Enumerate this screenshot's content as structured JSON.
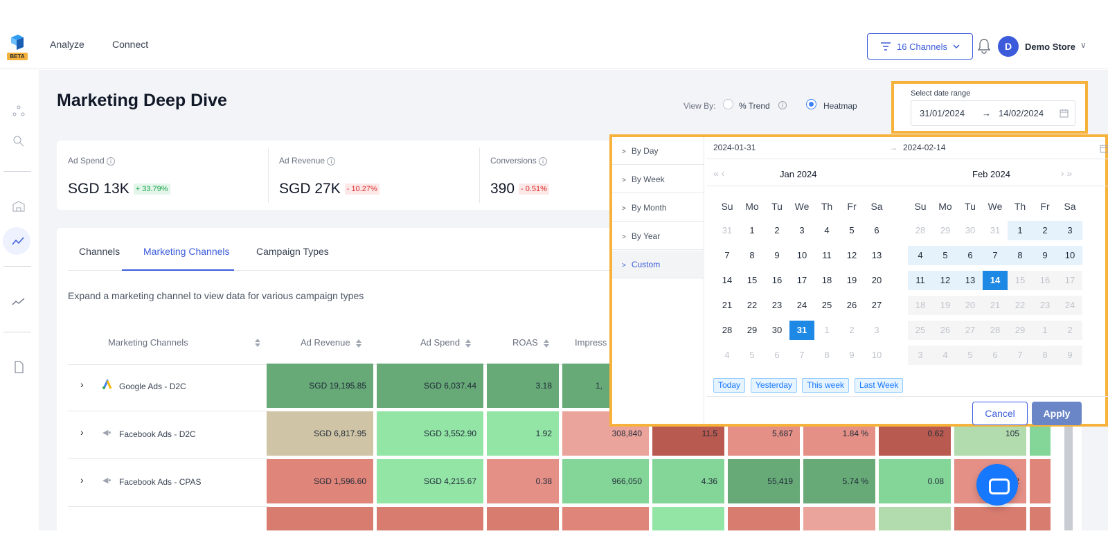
{
  "header": {
    "logo_badge": "BETA",
    "nav": [
      "Analyze",
      "Connect"
    ],
    "channels_button": "16 Channels",
    "avatar_initial": "D",
    "store_name": "Demo Store"
  },
  "page": {
    "title": "Marketing Deep Dive",
    "view_by_label": "View By:",
    "view_options": [
      "% Trend",
      "Heatmap"
    ],
    "view_selected": "Heatmap",
    "date_range_label": "Select date range",
    "date_start": "31/01/2024",
    "date_arrow": "→",
    "date_end": "14/02/2024"
  },
  "kpis": [
    {
      "label": "Ad Spend",
      "value": "SGD 13K",
      "change": "+ 33.79%",
      "trend": "up"
    },
    {
      "label": "Ad Revenue",
      "value": "SGD 27K",
      "change": "- 10.27%",
      "trend": "down"
    },
    {
      "label": "Conversions",
      "value": "390",
      "change": "- 0.51%",
      "trend": "down"
    }
  ],
  "tabs": [
    "Channels",
    "Marketing Channels",
    "Campaign Types"
  ],
  "active_tab": "Marketing Channels",
  "hint": "Expand a marketing channel to view data for various campaign types",
  "table": {
    "headers": [
      "Marketing Channels",
      "Ad Revenue",
      "Ad Spend",
      "ROAS",
      "Impress"
    ],
    "rows": [
      {
        "name": "Google Ads - D2C",
        "cells": [
          "SGD 19,195.85",
          "SGD 6,037.44",
          "3.18",
          "1,"
        ]
      },
      {
        "name": "Facebook Ads - D2C",
        "cells": [
          "SGD 6,817.95",
          "SGD 3,552.90",
          "1.92",
          "308,840",
          "11.5",
          "5,687",
          "1.84 %",
          "0.62",
          "105"
        ]
      },
      {
        "name": "Facebook Ads - CPAS",
        "cells": [
          "SGD 1,596.60",
          "SGD 4,215.67",
          "0.38",
          "966,050",
          "4.36",
          "55,419",
          "5.74 %",
          "0.08",
          "2"
        ]
      }
    ]
  },
  "picker": {
    "options": [
      "By Day",
      "By Week",
      "By Month",
      "By Year",
      "Custom"
    ],
    "active_option": "Custom",
    "input_start": "2024-01-31",
    "input_arrow": "→",
    "input_end": "2024-02-14",
    "nav_prev": "« ‹",
    "nav_next": "› »",
    "left_month": "Jan  2024",
    "right_month": "Feb  2024",
    "weekdays": [
      "Su",
      "Mo",
      "Tu",
      "We",
      "Th",
      "Fr",
      "Sa"
    ],
    "left_days": [
      "31",
      "1",
      "2",
      "3",
      "4",
      "5",
      "6",
      "7",
      "8",
      "9",
      "10",
      "11",
      "12",
      "13",
      "14",
      "15",
      "16",
      "17",
      "18",
      "19",
      "20",
      "21",
      "22",
      "23",
      "24",
      "25",
      "26",
      "27",
      "28",
      "29",
      "30",
      "31",
      "1",
      "2",
      "3",
      "4",
      "5",
      "6",
      "7",
      "8",
      "9",
      "10"
    ],
    "right_days": [
      "28",
      "29",
      "30",
      "31",
      "1",
      "2",
      "3",
      "4",
      "5",
      "6",
      "7",
      "8",
      "9",
      "10",
      "11",
      "12",
      "13",
      "14",
      "15",
      "16",
      "17",
      "18",
      "19",
      "20",
      "21",
      "22",
      "23",
      "24",
      "25",
      "26",
      "27",
      "28",
      "29",
      "1",
      "2",
      "3",
      "4",
      "5",
      "6",
      "7",
      "8",
      "9"
    ],
    "quick": [
      "Today",
      "Yesterday",
      "This week",
      "Last Week"
    ],
    "cancel": "Cancel",
    "apply": "Apply"
  },
  "colors": {
    "accent": "#3b5bdb",
    "highlight_border": "#f6b23b",
    "selected_day": "#1e88e5",
    "range_day": "#e6f2fb",
    "heat_dark_green": "#67aa78",
    "heat_green": "#93e5a6",
    "heat_light_green": "#84d698",
    "heat_red": "#e49087",
    "heat_dark_red": "#b85a4f",
    "heat_tan": "#cfc4a6"
  }
}
